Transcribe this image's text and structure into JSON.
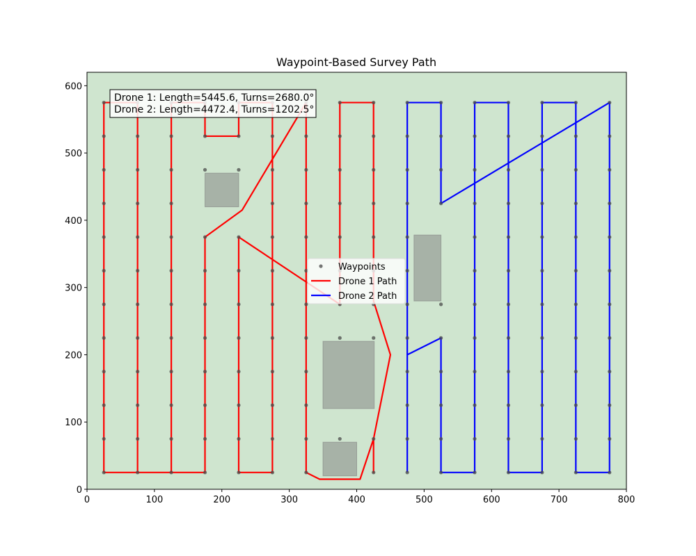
{
  "chart_data": {
    "type": "path",
    "title": "Waypoint-Based Survey Path",
    "xlim": [
      0,
      800
    ],
    "ylim": [
      0,
      620
    ],
    "xticks": [
      0,
      100,
      200,
      300,
      400,
      500,
      600,
      700,
      800
    ],
    "yticks": [
      0,
      100,
      200,
      300,
      400,
      500,
      600
    ],
    "facecolor": "#cfe5cf",
    "legend": "center",
    "annotation": [
      "Drone 1: Length=5445.6, Turns=2680.0°",
      "Drone 2: Length=4472.4, Turns=1202.5°"
    ],
    "obstacles": [
      {
        "x": [
          175,
          225
        ],
        "y": [
          420,
          470
        ]
      },
      {
        "x": [
          485,
          525
        ],
        "y": [
          280,
          378
        ]
      },
      {
        "x": [
          350,
          426
        ],
        "y": [
          120,
          220
        ]
      },
      {
        "x": [
          350,
          400
        ],
        "y": [
          20,
          70
        ]
      }
    ],
    "obstacle_color": "#808080",
    "series": [
      {
        "name": "Waypoints",
        "type": "scatter",
        "color": "#4a4a4a",
        "x": [
          25,
          25,
          25,
          25,
          25,
          25,
          25,
          25,
          25,
          25,
          25,
          25,
          75,
          75,
          75,
          75,
          75,
          75,
          75,
          75,
          75,
          75,
          75,
          75,
          125,
          125,
          125,
          125,
          125,
          125,
          125,
          125,
          125,
          125,
          125,
          125,
          175,
          175,
          175,
          175,
          175,
          175,
          175,
          175,
          175,
          175,
          175,
          225,
          225,
          225,
          225,
          225,
          225,
          225,
          225,
          225,
          225,
          225,
          275,
          275,
          275,
          275,
          275,
          275,
          275,
          275,
          275,
          275,
          275,
          275,
          325,
          325,
          325,
          325,
          325,
          325,
          325,
          325,
          325,
          325,
          325,
          325,
          375,
          375,
          375,
          375,
          375,
          375,
          375,
          375,
          375,
          425,
          425,
          425,
          425,
          425,
          425,
          425,
          425,
          425,
          425,
          475,
          475,
          475,
          475,
          475,
          475,
          475,
          475,
          475,
          475,
          475,
          475,
          525,
          525,
          525,
          525,
          525,
          525,
          525,
          525,
          525,
          525,
          575,
          575,
          575,
          575,
          575,
          575,
          575,
          575,
          575,
          575,
          575,
          575,
          625,
          625,
          625,
          625,
          625,
          625,
          625,
          625,
          625,
          625,
          625,
          625,
          675,
          675,
          675,
          675,
          675,
          675,
          675,
          675,
          675,
          675,
          675,
          675,
          725,
          725,
          725,
          725,
          725,
          725,
          725,
          725,
          725,
          725,
          725,
          725,
          775,
          775,
          775,
          775,
          775,
          775,
          775,
          775,
          775,
          775,
          775,
          775
        ],
        "y": [
          25,
          75,
          125,
          175,
          225,
          275,
          325,
          375,
          425,
          475,
          525,
          575,
          25,
          75,
          125,
          175,
          225,
          275,
          325,
          375,
          425,
          475,
          525,
          575,
          25,
          75,
          125,
          175,
          225,
          275,
          325,
          375,
          425,
          475,
          525,
          575,
          25,
          75,
          125,
          175,
          225,
          275,
          325,
          375,
          475,
          525,
          575,
          25,
          75,
          125,
          175,
          225,
          275,
          325,
          375,
          475,
          525,
          575,
          25,
          75,
          125,
          175,
          225,
          275,
          325,
          375,
          425,
          475,
          525,
          575,
          25,
          75,
          125,
          175,
          225,
          275,
          325,
          375,
          425,
          475,
          525,
          575,
          75,
          225,
          275,
          325,
          375,
          425,
          475,
          525,
          575,
          25,
          75,
          225,
          275,
          325,
          375,
          425,
          475,
          525,
          575,
          25,
          75,
          125,
          175,
          225,
          275,
          325,
          375,
          425,
          475,
          525,
          575,
          25,
          75,
          125,
          175,
          225,
          275,
          425,
          475,
          525,
          575,
          25,
          75,
          125,
          175,
          225,
          275,
          325,
          375,
          425,
          475,
          525,
          575,
          25,
          75,
          125,
          175,
          225,
          275,
          325,
          375,
          425,
          475,
          525,
          575,
          25,
          75,
          125,
          175,
          225,
          275,
          325,
          375,
          425,
          475,
          525,
          575,
          25,
          75,
          125,
          175,
          225,
          275,
          325,
          375,
          425,
          475,
          525,
          575,
          25,
          75,
          125,
          175,
          225,
          275,
          325,
          375,
          425,
          475,
          525,
          575
        ]
      },
      {
        "name": "Drone 1 Path",
        "type": "line",
        "color": "#ff0000",
        "x": [
          25,
          25,
          75,
          75,
          125,
          125,
          175,
          175,
          225,
          225,
          275,
          275,
          225,
          225,
          375,
          375,
          425,
          425,
          450,
          425,
          425,
          425,
          405,
          345,
          325,
          325,
          230,
          175,
          175,
          25
        ],
        "y": [
          25,
          575,
          575,
          25,
          25,
          575,
          575,
          525,
          525,
          575,
          575,
          25,
          25,
          375,
          275,
          575,
          575,
          280,
          200,
          75,
          25,
          75,
          15,
          15,
          25,
          575,
          415,
          375,
          25,
          25
        ]
      },
      {
        "name": "Drone 2 Path",
        "type": "line",
        "color": "#0000ff",
        "x": [
          475,
          475,
          525,
          525,
          775,
          775,
          725,
          725,
          675,
          675,
          625,
          625,
          575,
          575,
          525,
          525,
          475
        ],
        "y": [
          25,
          575,
          575,
          425,
          575,
          25,
          25,
          575,
          575,
          25,
          25,
          575,
          575,
          25,
          25,
          225,
          200
        ]
      }
    ]
  }
}
